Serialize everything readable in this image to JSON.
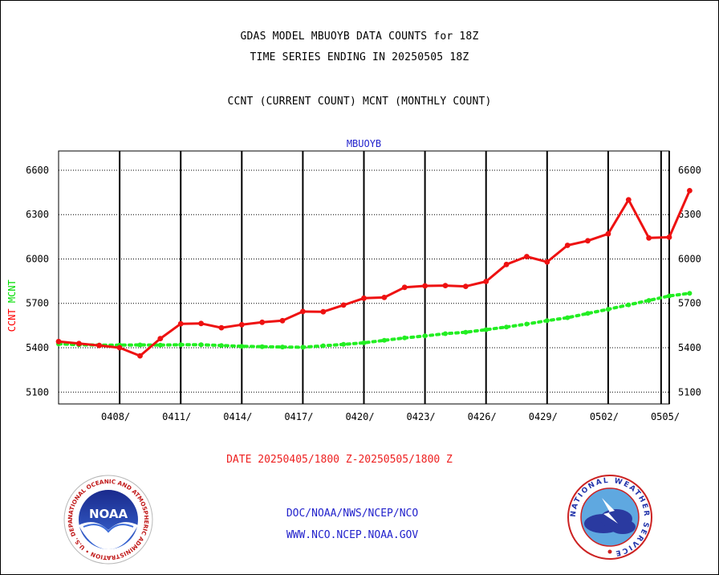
{
  "header": {
    "title_line1": "GDAS MODEL MBUOYB DATA COUNTS for 18Z",
    "title_line2": "TIME SERIES ENDING IN 20250505 18Z",
    "subtitle": "CCNT (CURRENT COUNT) MCNT (MONTHLY COUNT)"
  },
  "chart_data": {
    "type": "line",
    "title": "MBUOYB",
    "ylabel_parts": [
      {
        "text": "CCNT",
        "color": "#ff0000"
      },
      {
        "text": "MCNT",
        "color": "#00dd00"
      }
    ],
    "yticks": [
      5100,
      5400,
      5700,
      6000,
      6300,
      6600
    ],
    "ylim": [
      5020,
      6730
    ],
    "xlim": [
      0,
      30
    ],
    "xticks": [
      {
        "x": 3,
        "label": "0408/"
      },
      {
        "x": 6,
        "label": "0411/"
      },
      {
        "x": 9,
        "label": "0414/"
      },
      {
        "x": 12,
        "label": "0417/"
      },
      {
        "x": 15,
        "label": "0420/"
      },
      {
        "x": 18,
        "label": "0423/"
      },
      {
        "x": 21,
        "label": "0426/"
      },
      {
        "x": 24,
        "label": "0429/"
      },
      {
        "x": 27,
        "label": "0502/"
      },
      {
        "x": 30,
        "label": "0505/"
      }
    ],
    "extra_vlines": [
      29.6
    ],
    "grid": "dotted horizontal, solid vertical",
    "series": [
      {
        "key": "ccnt",
        "color": "#ee1111",
        "line": "solid",
        "values": [
          5442,
          5428,
          5415,
          5400,
          5345,
          5462,
          5562,
          5564,
          5535,
          5556,
          5572,
          5583,
          5645,
          5643,
          5688,
          5735,
          5740,
          5808,
          5818,
          5820,
          5815,
          5848,
          5963,
          6016,
          5980,
          6092,
          6123,
          6170,
          6400,
          6142,
          6147,
          6462
        ]
      },
      {
        "key": "mcnt",
        "color": "#22ee22",
        "line": "dotted",
        "values": [
          5426,
          5420,
          5418,
          5418,
          5419,
          5418,
          5420,
          5420,
          5415,
          5410,
          5407,
          5405,
          5403,
          5413,
          5423,
          5433,
          5450,
          5466,
          5480,
          5495,
          5505,
          5522,
          5540,
          5560,
          5583,
          5603,
          5632,
          5660,
          5690,
          5720,
          5750,
          5768
        ]
      }
    ]
  },
  "footer": {
    "date_range": "DATE 20250405/1800 Z-20250505/1800 Z",
    "link1": "DOC/NOAA/NWS/NCEP/NCO",
    "link2": "WWW.NCO.NCEP.NOAA.GOV",
    "noaa_logo_text": "NOAA",
    "noaa_ring_text": "NATIONAL OCEANIC AND ATMOSPHERIC ADMINISTRATION • U.S. DEPARTMENT OF COMMERCE",
    "nws_ring_text": "NATIONAL WEATHER SERVICE"
  }
}
